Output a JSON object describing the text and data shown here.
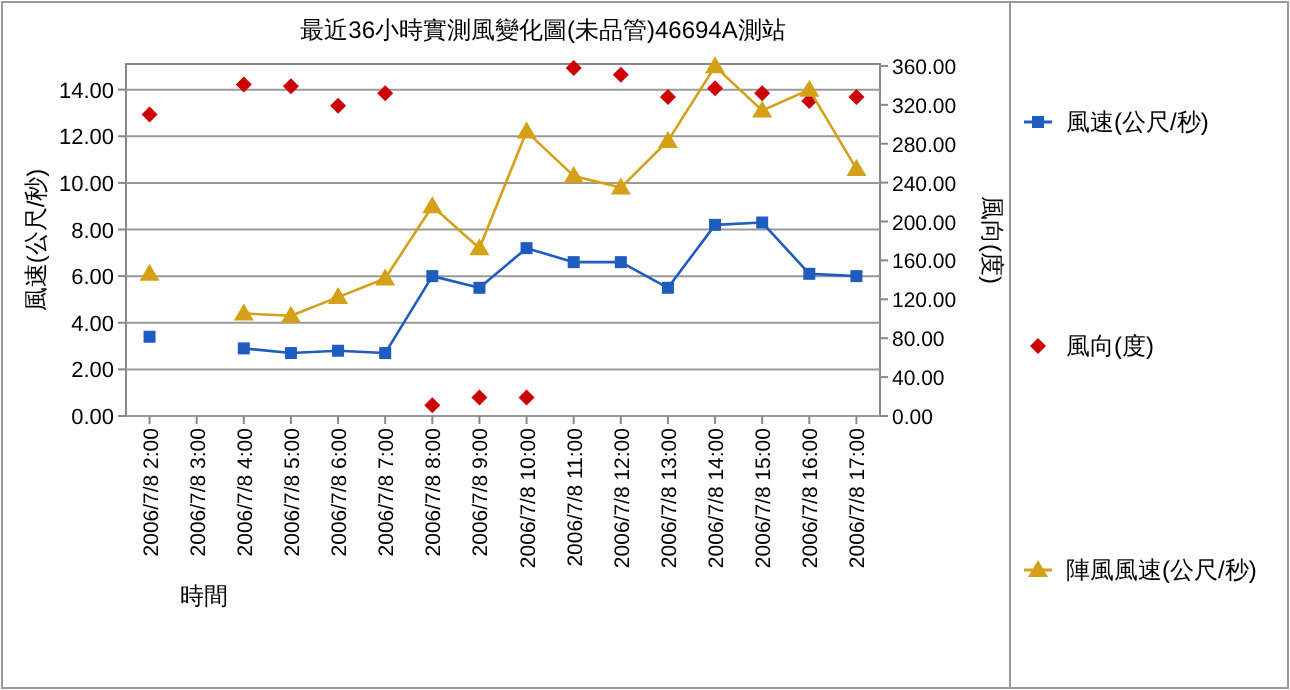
{
  "chart_data": {
    "type": "line",
    "title": "最近36小時實測風變化圖(未品管)46694A測站",
    "xlabel": "時間",
    "ylabel": "風速(公尺/秒)",
    "y2label": "風向(度)",
    "categories": [
      "2006/7/8 2:00",
      "2006/7/8 3:00",
      "2006/7/8 4:00",
      "2006/7/8 5:00",
      "2006/7/8 6:00",
      "2006/7/8 7:00",
      "2006/7/8 8:00",
      "2006/7/8 9:00",
      "2006/7/8 10:00",
      "2006/7/8 11:00",
      "2006/7/8 12:00",
      "2006/7/8 13:00",
      "2006/7/8 14:00",
      "2006/7/8 15:00",
      "2006/7/8 16:00",
      "2006/7/8 17:00"
    ],
    "series": [
      {
        "name": "風速(公尺/秒)",
        "marker": "square",
        "color": "#1f5cbf",
        "values": [
          3.4,
          null,
          2.9,
          2.7,
          2.8,
          2.7,
          6.0,
          5.5,
          7.2,
          6.6,
          6.6,
          5.5,
          8.2,
          8.3,
          6.1,
          6.0
        ]
      },
      {
        "name": "風向(度)",
        "type": "scatter",
        "marker": "diamond",
        "axis": "y2",
        "color": "#cc0000",
        "values": [
          310,
          null,
          341,
          339,
          319,
          332,
          11,
          19,
          19,
          358,
          351,
          328,
          337,
          332,
          324,
          328
        ]
      },
      {
        "name": "陣風風速(公尺/秒)",
        "marker": "triangle",
        "color": "#d4a017",
        "values": [
          6.1,
          null,
          4.4,
          4.3,
          5.1,
          5.9,
          9.0,
          7.2,
          12.2,
          10.3,
          9.8,
          11.8,
          15.0,
          13.1,
          14.0,
          10.6
        ]
      }
    ],
    "ylim": [
      0,
      15.1
    ],
    "yticks": [
      {
        "value": 0,
        "label": "0.00"
      },
      {
        "value": 2,
        "label": "2.00"
      },
      {
        "value": 4,
        "label": "4.00"
      },
      {
        "value": 6,
        "label": "6.00"
      },
      {
        "value": 8,
        "label": "8.00"
      },
      {
        "value": 10,
        "label": "10.00"
      },
      {
        "value": 12,
        "label": "12.00"
      },
      {
        "value": 14,
        "label": "14.00"
      }
    ],
    "y2lim": [
      0,
      362
    ],
    "y2ticks": [
      {
        "value": 0,
        "label": "0.00"
      },
      {
        "value": 40,
        "label": "40.00"
      },
      {
        "value": 80,
        "label": "80.00"
      },
      {
        "value": 120,
        "label": "120.00"
      },
      {
        "value": 160,
        "label": "160.00"
      },
      {
        "value": 200,
        "label": "200.00"
      },
      {
        "value": 240,
        "label": "240.00"
      },
      {
        "value": 280,
        "label": "280.00"
      },
      {
        "value": 320,
        "label": "320.00"
      },
      {
        "value": 360,
        "label": "360.00"
      }
    ],
    "grid": "y",
    "legend": "right"
  }
}
